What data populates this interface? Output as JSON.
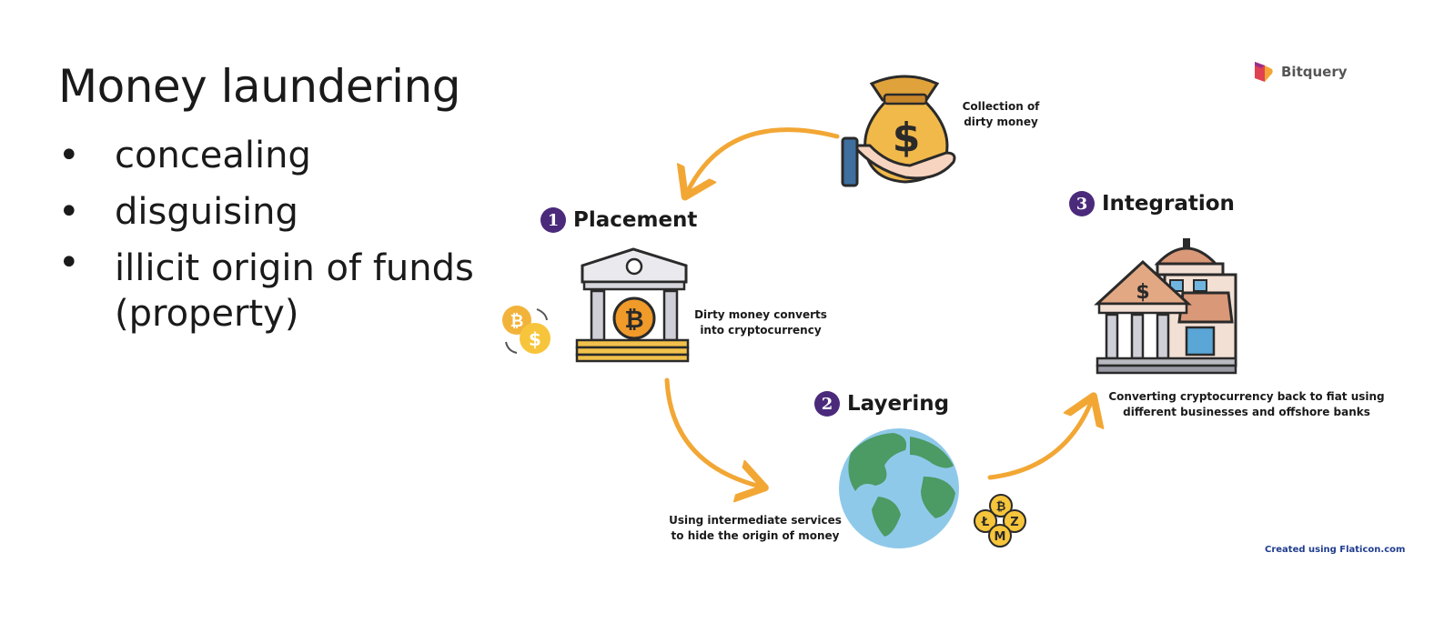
{
  "title": "Money laundering",
  "bullets": [
    "concealing",
    "disguising",
    "illicit origin of funds (property)"
  ],
  "bullet_glyph": "•",
  "brand": {
    "name": "Bitquery"
  },
  "stages": [
    {
      "number": "1",
      "name": "Placement"
    },
    {
      "number": "2",
      "name": "Layering"
    },
    {
      "number": "3",
      "name": "Integration"
    }
  ],
  "captions": {
    "collection": [
      "Collection of",
      "dirty money"
    ],
    "placement": [
      "Dirty money converts",
      "into cryptocurrency"
    ],
    "layering": [
      "Using intermediate services",
      "to hide the origin of money"
    ],
    "integration": [
      "Converting cryptocurrency back to fiat using",
      "different businesses and offshore banks"
    ]
  },
  "icon_glyphs": {
    "dollar": "$",
    "bitcoin": "₿",
    "litecoin": "Ł",
    "zcash": "Z",
    "monero": "M"
  },
  "credit": "Created using Flaticon.com",
  "colors": {
    "arrow": "#f2a735",
    "number_badge": "#4b2a7b",
    "credit": "#1f3c8f"
  }
}
